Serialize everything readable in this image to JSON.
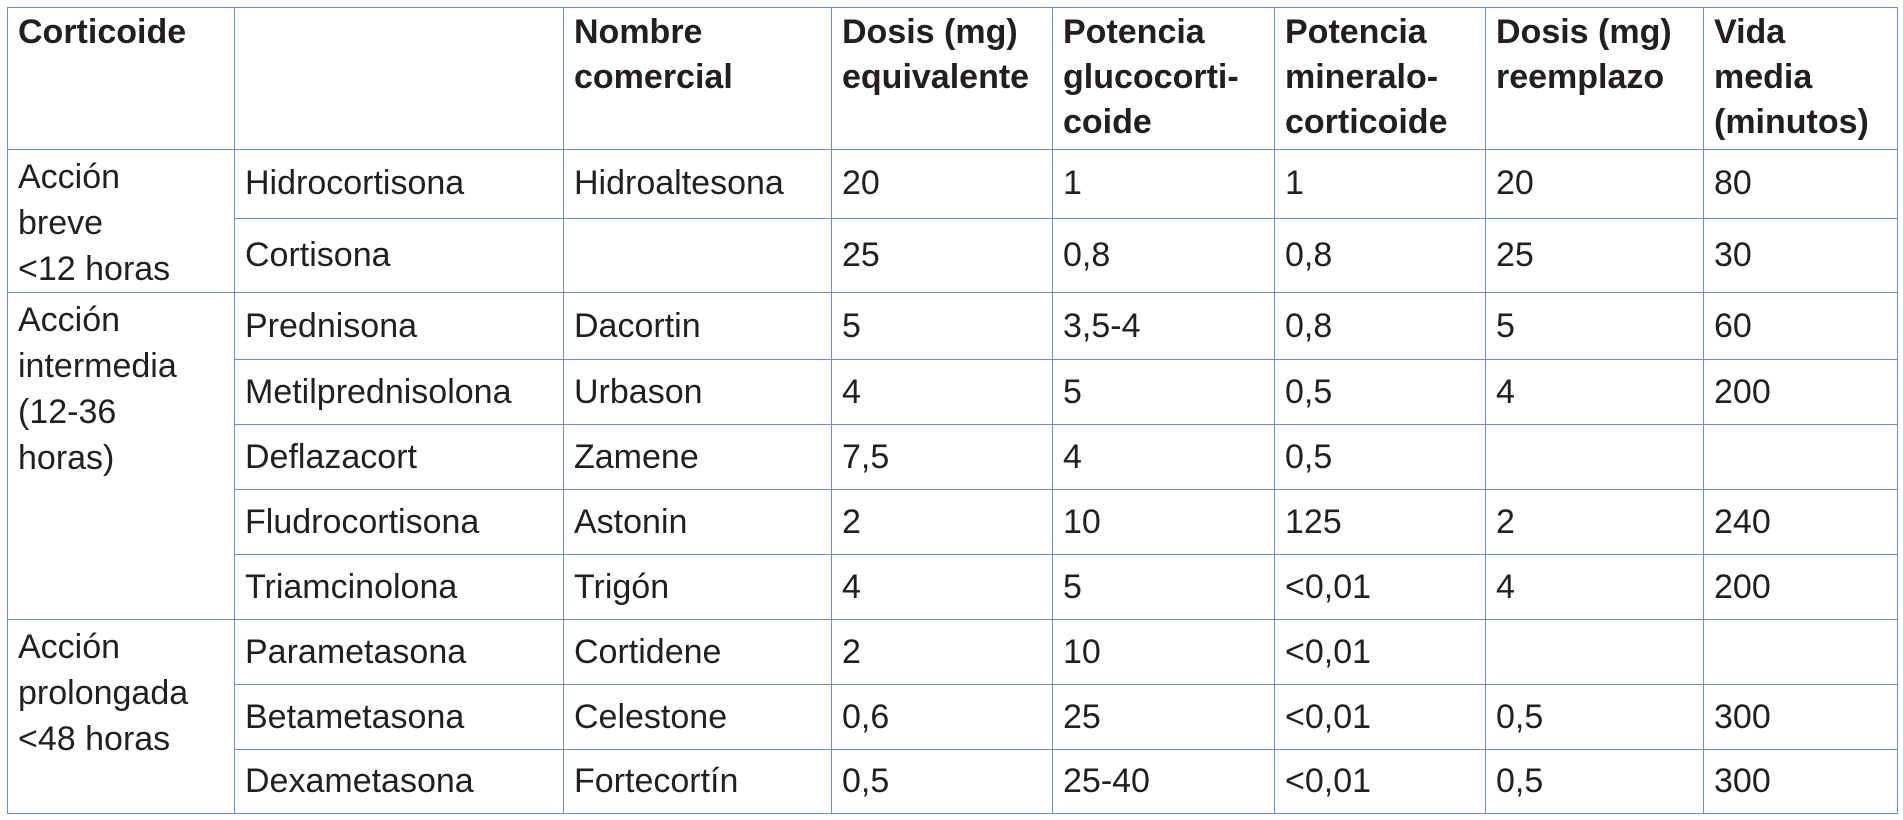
{
  "headers": [
    "Corticoide",
    "",
    "Nombre\ncomercial",
    "Dosis (mg)\nequivalente",
    "Potencia\nglucocorti-\ncoide",
    "Potencia\nmineralo-\ncorticoide",
    "Dosis (mg)\nreemplazo",
    "Vida\nmedia\n(minutos)"
  ],
  "groups": [
    {
      "label": "Acción\nbreve\n<12 horas",
      "rows": [
        [
          "Hidrocortisona",
          "Hidroaltesona",
          "20",
          "1",
          "1",
          "20",
          "80"
        ],
        [
          "Cortisona",
          "",
          "25",
          "0,8",
          "0,8",
          "25",
          "30"
        ]
      ]
    },
    {
      "label": "Acción\nintermedia\n(12-36\nhoras)",
      "rows": [
        [
          "Prednisona",
          "Dacortin",
          "5",
          "3,5-4",
          "0,8",
          "5",
          "60"
        ],
        [
          "Metilprednisolona",
          "Urbason",
          "4",
          "5",
          "0,5",
          "4",
          "200"
        ],
        [
          "Deflazacort",
          "Zamene",
          "7,5",
          "4",
          "0,5",
          "",
          ""
        ],
        [
          "Fludrocortisona",
          "Astonin",
          "2",
          "10",
          "125",
          "2",
          "240"
        ],
        [
          "Triamcinolona",
          "Trigón",
          "4",
          "5",
          "<0,01",
          "4",
          "200"
        ]
      ]
    },
    {
      "label": "Acción\nprolongada\n<48 horas",
      "rows": [
        [
          "Parametasona",
          "Cortidene",
          "2",
          "10",
          "<0,01",
          "",
          ""
        ],
        [
          "Betametasona",
          "Celestone",
          "0,6",
          "25",
          "<0,01",
          "0,5",
          "300"
        ],
        [
          "Dexametasona",
          "Fortecortín",
          "0,5",
          "25-40",
          "<0,01",
          "0,5",
          "300"
        ]
      ]
    }
  ]
}
